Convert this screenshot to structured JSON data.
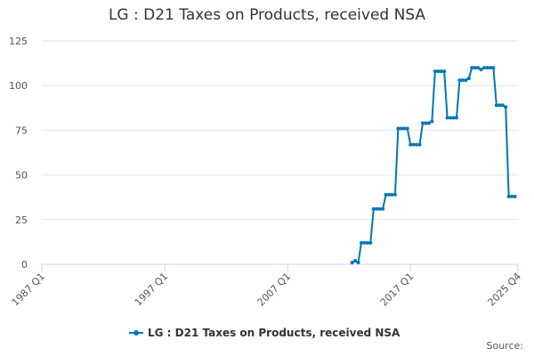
{
  "chart_data": {
    "type": "line",
    "title": "LG : D21 Taxes on Products, received NSA",
    "source": "Source:",
    "x": [
      "2012 Q2",
      "2012 Q3",
      "2012 Q4",
      "2013 Q1",
      "2013 Q2",
      "2013 Q3",
      "2013 Q4",
      "2014 Q1",
      "2014 Q2",
      "2014 Q3",
      "2014 Q4",
      "2015 Q1",
      "2015 Q2",
      "2015 Q3",
      "2015 Q4",
      "2016 Q1",
      "2016 Q2",
      "2016 Q3",
      "2016 Q4",
      "2017 Q1",
      "2017 Q2",
      "2017 Q3",
      "2017 Q4",
      "2018 Q1",
      "2018 Q2",
      "2018 Q3",
      "2018 Q4",
      "2019 Q1",
      "2019 Q2",
      "2019 Q3",
      "2019 Q4",
      "2020 Q1",
      "2020 Q2",
      "2020 Q3",
      "2020 Q4",
      "2021 Q1",
      "2021 Q2",
      "2021 Q3",
      "2021 Q4",
      "2022 Q1",
      "2022 Q2",
      "2022 Q3",
      "2022 Q4",
      "2023 Q1",
      "2023 Q2",
      "2023 Q3",
      "2023 Q4",
      "2024 Q1",
      "2024 Q2",
      "2024 Q3",
      "2024 Q4",
      "2025 Q1",
      "2025 Q2",
      "2025 Q3"
    ],
    "series": [
      {
        "name": "LG : D21 Taxes on Products, received NSA",
        "color": "#0077b6",
        "values": [
          1,
          2,
          1,
          12,
          12,
          12,
          12,
          31,
          31,
          31,
          31,
          39,
          39,
          39,
          39,
          76,
          76,
          76,
          76,
          67,
          67,
          67,
          67,
          79,
          79,
          79,
          80,
          108,
          108,
          108,
          108,
          82,
          82,
          82,
          82,
          103,
          103,
          103,
          104,
          110,
          110,
          110,
          109,
          110,
          110,
          110,
          110,
          89,
          89,
          89,
          88,
          38,
          38,
          38
        ]
      }
    ],
    "xlim": [
      "1987 Q1",
      "2025 Q4"
    ],
    "xticks": [
      "1987 Q1",
      "1997 Q1",
      "2007 Q1",
      "2017 Q1",
      "2025 Q4"
    ],
    "ylim": [
      0,
      125
    ],
    "yticks": [
      0,
      25,
      50,
      75,
      100,
      125
    ],
    "grid": true
  }
}
